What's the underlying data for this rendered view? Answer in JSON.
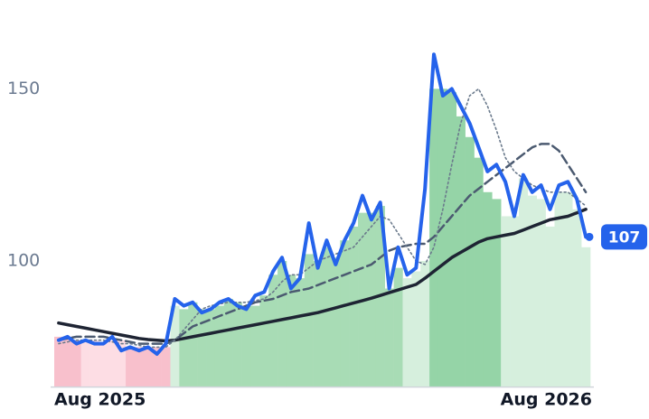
{
  "chart_data": {
    "type": "line",
    "categories": [
      "Aug 2025",
      null,
      null,
      null,
      null,
      null,
      null,
      null,
      null,
      null,
      null,
      null,
      null,
      null,
      null,
      null,
      null,
      null,
      null,
      null,
      null,
      null,
      null,
      null,
      null,
      null,
      null,
      null,
      null,
      null,
      null,
      null,
      null,
      null,
      null,
      null,
      null,
      null,
      null,
      null,
      null,
      null,
      null,
      null,
      null,
      null,
      null,
      null,
      null,
      null,
      null,
      null,
      null,
      null,
      null,
      null,
      null,
      null,
      null,
      "Aug 2026"
    ],
    "ylim": [
      63.4,
      175.8
    ],
    "yticks": [
      100,
      150
    ],
    "series": [
      {
        "type": "bar",
        "colors": [
          "#f8c0cc",
          "#f8c0cc",
          "#f8c0cc",
          "#fddde4",
          "#fddde4",
          "#fddde4",
          "#fddde4",
          "#fddde4",
          "#f8c0cc",
          "#f8c0cc",
          "#f8c0cc",
          "#f8c0cc",
          "#f8c0cc",
          "#d6efdd",
          "#a8dcb5",
          "#a8dcb5",
          "#a8dcb5",
          "#a8dcb5",
          "#a8dcb5",
          "#a8dcb5",
          "#a8dcb5",
          "#a8dcb5",
          "#a8dcb5",
          "#a8dcb5",
          "#a8dcb5",
          "#a8dcb5",
          "#a8dcb5",
          "#a8dcb5",
          "#a8dcb5",
          "#a8dcb5",
          "#a8dcb5",
          "#a8dcb5",
          "#a8dcb5",
          "#a8dcb5",
          "#a8dcb5",
          "#a8dcb5",
          "#a8dcb5",
          "#a8dcb5",
          "#a8dcb5",
          "#d6efdd",
          "#d6efdd",
          "#d6efdd",
          "#95d4a7",
          "#95d4a7",
          "#95d4a7",
          "#95d4a7",
          "#95d4a7",
          "#95d4a7",
          "#95d4a7",
          "#95d4a7",
          "#d6efdd",
          "#d6efdd",
          "#d6efdd",
          "#d6efdd",
          "#d6efdd",
          "#d6efdd",
          "#d6efdd",
          "#d6efdd",
          "#d6efdd",
          "#d6efdd"
        ],
        "values": [
          78,
          78,
          77,
          77,
          77,
          76,
          77,
          77,
          75,
          75,
          75,
          75,
          75,
          87,
          86,
          88,
          86,
          86,
          87,
          89,
          88,
          87,
          87,
          90,
          96,
          100,
          96,
          95,
          102,
          100,
          104,
          101,
          106,
          110,
          114,
          114,
          116,
          92,
          98,
          95,
          97,
          100,
          150,
          150,
          149,
          142,
          136,
          130,
          120,
          118,
          113,
          113,
          124,
          119,
          118,
          110,
          120,
          120,
          115,
          104
        ]
      },
      {
        "type": "line",
        "color": "#1e2433",
        "line_style": "solid",
        "values": [
          82,
          81.5,
          81,
          80.5,
          80,
          79.5,
          79,
          78.5,
          78,
          77.5,
          77.2,
          77,
          76.8,
          77,
          77.5,
          78,
          78.5,
          79,
          79.5,
          80,
          80.5,
          81,
          81.5,
          82,
          82.5,
          83,
          83.5,
          84,
          84.5,
          85,
          85.7,
          86.4,
          87.1,
          87.8,
          88.5,
          89.2,
          90,
          90.8,
          91.6,
          92.4,
          93.2,
          95,
          97,
          99,
          101,
          102.5,
          104,
          105.5,
          106.5,
          107,
          107.5,
          108,
          109,
          110,
          111,
          112,
          112.5,
          113,
          114,
          115
        ]
      },
      {
        "type": "line",
        "color": "#4b5a70",
        "line_style": "dashed",
        "values": [
          77,
          77.5,
          78,
          78,
          78,
          78,
          77.5,
          77,
          76.5,
          76,
          76,
          76,
          76,
          77,
          79,
          81,
          82,
          83,
          84,
          85,
          86,
          87,
          88,
          88.5,
          89,
          90,
          91,
          91.5,
          92,
          93,
          94,
          95,
          96,
          97,
          98,
          99,
          101,
          103,
          104,
          104.5,
          105,
          105,
          107,
          110,
          113,
          116,
          119,
          121,
          123,
          125,
          127,
          129,
          131,
          133,
          134,
          134,
          132,
          128,
          124,
          120
        ]
      },
      {
        "type": "line",
        "color": "#6b7a8c",
        "line_style": "dotted",
        "values": [
          76,
          76.5,
          77,
          77,
          77,
          77,
          76.5,
          76,
          76,
          75.5,
          75,
          75,
          75,
          77,
          80,
          83,
          86,
          87,
          87.5,
          88,
          88,
          88,
          88.5,
          89,
          91,
          94,
          96,
          96,
          98,
          100,
          101,
          102,
          103,
          104,
          107,
          110,
          113,
          112,
          108,
          104,
          100,
          99,
          104,
          115,
          128,
          140,
          148,
          150,
          145,
          138,
          130,
          126,
          124,
          122,
          121,
          120,
          120,
          120,
          118,
          116
        ]
      },
      {
        "type": "line",
        "color": "#2563eb",
        "line_style": "solid",
        "end_label": true,
        "values": [
          77,
          78,
          76,
          77,
          76,
          76,
          78,
          74,
          75,
          74,
          75,
          73,
          76,
          89,
          87,
          88,
          85,
          86,
          88,
          89,
          87,
          86,
          90,
          91,
          97,
          101,
          92,
          95,
          111,
          98,
          106,
          99,
          106,
          111,
          119,
          112,
          117,
          92,
          104,
          96,
          98,
          121,
          160,
          148,
          150,
          145,
          140,
          133,
          126,
          128,
          123,
          113,
          125,
          120,
          122,
          115,
          122,
          123,
          118,
          107
        ]
      }
    ]
  }
}
